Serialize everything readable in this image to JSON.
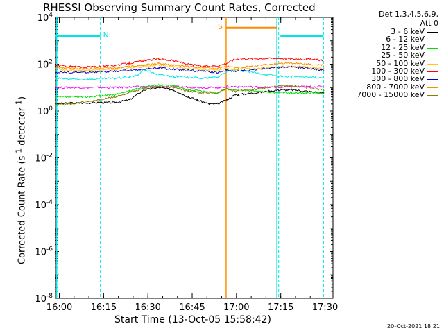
{
  "chart_data": {
    "type": "line",
    "title": "RHESSI Observing Summary Count Rates, Corrected",
    "detector_info_line1": "Det 1,3,4,5,6,9,",
    "detector_info_line2": "Att 0",
    "xlabel": "Start Time (13-Oct-05 15:58:42)",
    "ylabel_main": "Corrected Count Rate (s",
    "ylabel_sup": "-1",
    "ylabel_rest": " detector",
    "ylabel_sup2": "-1",
    "ylabel_close": ")",
    "x_unit": "minutes since 15:58:42",
    "xlim": [
      0,
      94
    ],
    "x_ticks": [
      {
        "value": 1.3,
        "label": "16:00"
      },
      {
        "value": 16.3,
        "label": "16:15"
      },
      {
        "value": 31.3,
        "label": "16:30"
      },
      {
        "value": 46.3,
        "label": "16:45"
      },
      {
        "value": 61.3,
        "label": "17:00"
      },
      {
        "value": 76.3,
        "label": "17:15"
      },
      {
        "value": 91.3,
        "label": "17:30"
      }
    ],
    "y_scale": "log",
    "ylim_exp": [
      -8,
      4
    ],
    "y_ticks": [
      {
        "exp": 4,
        "base": "10",
        "sup": "4"
      },
      {
        "exp": 2,
        "base": "10",
        "sup": "2"
      },
      {
        "exp": 0,
        "base": "10",
        "sup": "0"
      },
      {
        "exp": -2,
        "base": "10",
        "sup": "-2"
      },
      {
        "exp": -4,
        "base": "10",
        "sup": "-4"
      },
      {
        "exp": -6,
        "base": "10",
        "sup": "-6"
      },
      {
        "exp": -8,
        "base": "10",
        "sup": "-8"
      }
    ],
    "vlines": [
      {
        "x": 0.4,
        "color": "#00e5e5",
        "style": "solid"
      },
      {
        "x": 15.2,
        "color": "#00e5e5",
        "style": "dashed"
      },
      {
        "x": 57.8,
        "color": "#ff8c00",
        "style": "solid"
      },
      {
        "x": 75.0,
        "color": "#00e5e5",
        "style": "solid"
      },
      {
        "x": 75.6,
        "color": "#00e5e5",
        "style": "dashed"
      },
      {
        "x": 90.8,
        "color": "#00e5e5",
        "style": "dashed"
      }
    ],
    "flag_bars": [
      {
        "label": "N",
        "color": "#00e5e5",
        "segments": [
          [
            0,
            15.2
          ],
          [
            76.2,
            90.8
          ]
        ],
        "level": 3.2
      },
      {
        "label": "S",
        "color": "#ff8c00",
        "segments": [
          [
            57.8,
            75.0
          ]
        ],
        "level": 3.55
      }
    ],
    "gap": [
      62.5,
      76.0
    ],
    "series": [
      {
        "name": "3 - 6 keV",
        "color": "#000000",
        "x": [
          0,
          5,
          10,
          15,
          20,
          25,
          30,
          35,
          40,
          45,
          48,
          52,
          55,
          58,
          61,
          62,
          76,
          80,
          85,
          90,
          91
        ],
        "y": [
          2.0,
          2.2,
          2.2,
          2.3,
          2.3,
          3,
          8,
          10,
          8,
          4,
          3,
          2,
          2,
          3,
          5,
          5,
          8,
          8,
          7,
          6,
          6
        ]
      },
      {
        "name": "6 - 12 keV",
        "color": "#ff00ff",
        "x": [
          0,
          10,
          20,
          30,
          40,
          50,
          55,
          58,
          61,
          62,
          76,
          80,
          85,
          90,
          91
        ],
        "y": [
          10,
          10,
          10,
          11,
          11,
          10,
          10,
          11,
          11,
          11,
          10,
          11,
          11,
          11,
          11
        ]
      },
      {
        "name": "12 - 25 keV",
        "color": "#00dd00",
        "x": [
          0,
          5,
          10,
          15,
          20,
          25,
          30,
          35,
          40,
          45,
          50,
          55,
          58,
          61,
          62,
          76,
          80,
          85,
          90,
          91
        ],
        "y": [
          4,
          4,
          4,
          4.5,
          5,
          7,
          11,
          13,
          12,
          8,
          7,
          6,
          9,
          8,
          8,
          6,
          6,
          6,
          6,
          6
        ]
      },
      {
        "name": "25 - 50 keV",
        "color": "#00e5e5",
        "x": [
          0,
          5,
          10,
          15,
          20,
          25,
          28,
          30,
          35,
          40,
          45,
          50,
          55,
          58,
          61,
          62,
          76,
          80,
          85,
          90,
          91
        ],
        "y": [
          25,
          23,
          22,
          24,
          25,
          28,
          35,
          60,
          35,
          30,
          28,
          25,
          28,
          50,
          55,
          55,
          30,
          30,
          28,
          27,
          27
        ]
      },
      {
        "name": "50 - 100 keV",
        "color": "#ffcc00",
        "x": [
          0,
          10,
          20,
          30,
          35,
          40,
          50,
          55,
          58,
          61,
          62,
          76,
          80,
          85,
          90,
          91
        ],
        "y": [
          55,
          55,
          60,
          80,
          90,
          75,
          60,
          55,
          65,
          60,
          60,
          80,
          80,
          75,
          65,
          65
        ]
      },
      {
        "name": "100 - 300 keV",
        "color": "#ff0000",
        "x": [
          0,
          5,
          10,
          15,
          20,
          25,
          30,
          35,
          40,
          45,
          50,
          55,
          58,
          60,
          62,
          76,
          80,
          85,
          90,
          91
        ],
        "y": [
          90,
          80,
          75,
          80,
          90,
          110,
          140,
          170,
          140,
          100,
          80,
          85,
          110,
          150,
          170,
          180,
          170,
          165,
          150,
          150
        ]
      },
      {
        "name": "300 - 800 keV",
        "color": "#0000cc",
        "x": [
          0,
          10,
          20,
          30,
          35,
          40,
          50,
          55,
          58,
          61,
          62,
          76,
          80,
          85,
          90,
          91
        ],
        "y": [
          45,
          45,
          50,
          60,
          70,
          60,
          50,
          45,
          55,
          50,
          50,
          75,
          75,
          70,
          55,
          55
        ]
      },
      {
        "name": "800 - 7000 keV",
        "color": "#ff8c00",
        "x": [
          0,
          10,
          20,
          30,
          35,
          40,
          50,
          55,
          58,
          61,
          62,
          76,
          80,
          85,
          90,
          91
        ],
        "y": [
          70,
          65,
          70,
          90,
          110,
          90,
          70,
          65,
          80,
          70,
          70,
          110,
          110,
          100,
          90,
          90
        ]
      },
      {
        "name": "7000 - 15000 keV",
        "color": "#808000",
        "x": [
          0,
          5,
          10,
          15,
          20,
          25,
          30,
          35,
          40,
          45,
          50,
          55,
          58,
          61,
          62,
          76,
          80,
          85,
          90,
          91
        ],
        "y": [
          1.8,
          2,
          2.5,
          3,
          4,
          6,
          9,
          11,
          10,
          7,
          6,
          6,
          9,
          7,
          7,
          12,
          12,
          10,
          8,
          8
        ]
      }
    ]
  },
  "footer": {
    "timestamp": "20-Oct-2021 18:21"
  }
}
